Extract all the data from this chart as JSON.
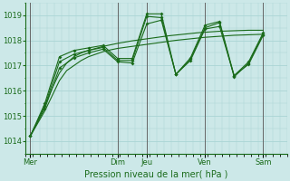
{
  "xlabel": "Pression niveau de la mer( hPa )",
  "bg_color": "#cce8e8",
  "grid_color": "#aad4d4",
  "line_color": "#1a6b1a",
  "vline_color": "#666666",
  "ylim": [
    1013.5,
    1019.5
  ],
  "yticks": [
    1014,
    1015,
    1016,
    1017,
    1018,
    1019
  ],
  "xlim": [
    0,
    108
  ],
  "x_day_labels": [
    "Mer",
    "Dim",
    "Jeu",
    "Ven",
    "Sam"
  ],
  "x_day_positions": [
    2,
    38,
    50,
    74,
    98
  ],
  "vline_positions": [
    2,
    38,
    50,
    74,
    98
  ],
  "s1_x": [
    2,
    5,
    8,
    11,
    14,
    17,
    20,
    23,
    26,
    29,
    32,
    35,
    38,
    41,
    44,
    47,
    50,
    53,
    56,
    59,
    62,
    65,
    68,
    71,
    74,
    77,
    80,
    83,
    86,
    89,
    92,
    95,
    98
  ],
  "s1_y": [
    1014.2,
    1014.7,
    1015.2,
    1015.8,
    1016.4,
    1016.8,
    1017.0,
    1017.2,
    1017.35,
    1017.45,
    1017.55,
    1017.62,
    1017.68,
    1017.72,
    1017.76,
    1017.8,
    1017.84,
    1017.88,
    1017.92,
    1017.96,
    1018.0,
    1018.03,
    1018.06,
    1018.09,
    1018.12,
    1018.14,
    1018.16,
    1018.18,
    1018.2,
    1018.21,
    1018.22,
    1018.23,
    1018.24
  ],
  "s2_x": [
    2,
    5,
    8,
    11,
    14,
    17,
    20,
    23,
    26,
    29,
    32,
    35,
    38,
    41,
    44,
    47,
    50,
    53,
    56,
    59,
    62,
    65,
    68,
    71,
    74,
    77,
    80,
    83,
    86,
    89,
    92,
    95,
    98
  ],
  "s2_y": [
    1014.2,
    1014.8,
    1015.4,
    1016.1,
    1016.7,
    1017.1,
    1017.35,
    1017.5,
    1017.6,
    1017.68,
    1017.76,
    1017.82,
    1017.88,
    1017.93,
    1017.98,
    1018.02,
    1018.06,
    1018.1,
    1018.14,
    1018.18,
    1018.21,
    1018.24,
    1018.27,
    1018.3,
    1018.32,
    1018.34,
    1018.36,
    1018.37,
    1018.38,
    1018.39,
    1018.4,
    1018.4,
    1018.4
  ],
  "s3_x": [
    2,
    8,
    14,
    20,
    26,
    32,
    38,
    44,
    50,
    56,
    62,
    68,
    74,
    80,
    86,
    92,
    98
  ],
  "s3_y": [
    1014.2,
    1015.3,
    1016.9,
    1017.3,
    1017.5,
    1017.65,
    1017.15,
    1017.1,
    1018.65,
    1018.8,
    1016.65,
    1017.2,
    1018.45,
    1018.55,
    1016.6,
    1017.05,
    1018.2
  ],
  "s4_x": [
    2,
    8,
    14,
    20,
    26,
    32,
    38,
    44,
    50,
    56,
    62,
    68,
    74,
    80,
    86,
    92,
    98
  ],
  "s4_y": [
    1014.2,
    1015.4,
    1017.15,
    1017.45,
    1017.6,
    1017.72,
    1017.2,
    1017.2,
    1018.95,
    1018.9,
    1016.65,
    1017.25,
    1018.5,
    1018.7,
    1016.55,
    1017.1,
    1018.25
  ],
  "s5_x": [
    2,
    8,
    14,
    20,
    26,
    32,
    38,
    44,
    50,
    56,
    62,
    68,
    74,
    80,
    86,
    92,
    98
  ],
  "s5_y": [
    1014.2,
    1015.5,
    1017.35,
    1017.6,
    1017.7,
    1017.8,
    1017.28,
    1017.28,
    1019.05,
    1019.05,
    1016.65,
    1017.3,
    1018.6,
    1018.75,
    1016.6,
    1017.15,
    1018.3
  ]
}
